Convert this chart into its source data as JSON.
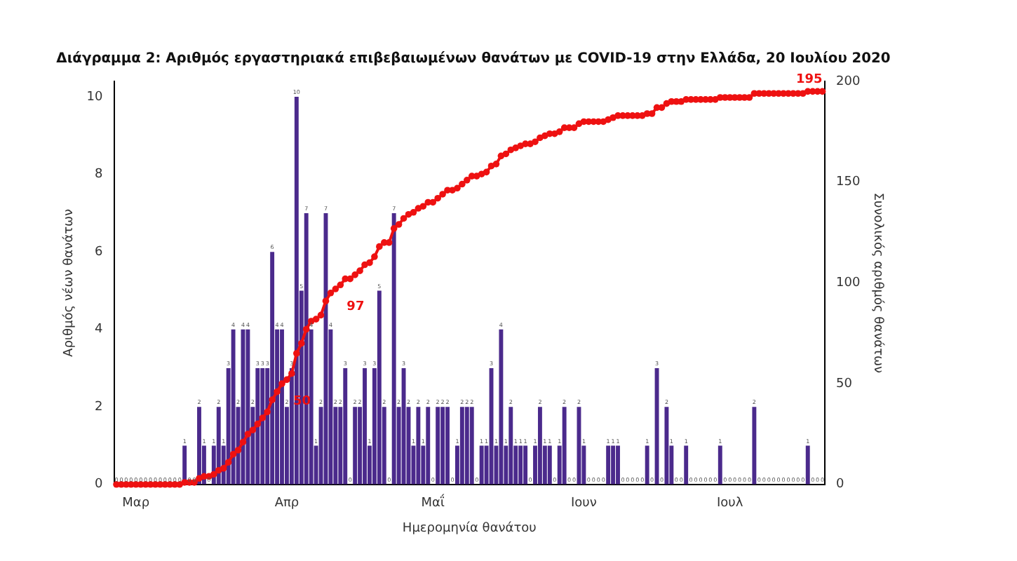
{
  "chart_data": {
    "type": "bar",
    "title": "Διάγραμμα 2: Αριθμός εργαστηριακά επιβεβαιωμένων θανάτων με COVID-19 στην Ελλάδα, 20 Ιουλίου 2020",
    "xlabel": "Ημερομηνία θανάτου",
    "ylabel": "Αριθμός νέων θανάτων",
    "y2label": "Συνολικός αριθμός θανάτων",
    "categories": [
      null,
      null,
      null,
      null,
      "Μαρ",
      null,
      null,
      null,
      null,
      null,
      null,
      null,
      null,
      null,
      null,
      null,
      null,
      null,
      null,
      null,
      null,
      null,
      null,
      null,
      null,
      null,
      null,
      null,
      null,
      null,
      null,
      null,
      null,
      null,
      null,
      "Απρ",
      null,
      null,
      null,
      null,
      null,
      null,
      null,
      null,
      null,
      null,
      null,
      null,
      null,
      null,
      null,
      null,
      null,
      null,
      null,
      null,
      null,
      null,
      null,
      null,
      null,
      null,
      null,
      null,
      null,
      "Μαΐ",
      null,
      null,
      null,
      null,
      null,
      null,
      null,
      null,
      null,
      null,
      null,
      null,
      null,
      null,
      null,
      null,
      null,
      null,
      null,
      null,
      null,
      null,
      null,
      null,
      null,
      null,
      null,
      null,
      null,
      null,
      "Ιουν",
      null,
      null,
      null,
      null,
      null,
      null,
      null,
      null,
      null,
      null,
      null,
      null,
      null,
      null,
      null,
      null,
      null,
      null,
      null,
      null,
      null,
      null,
      null,
      null,
      null,
      null,
      null,
      null,
      null,
      "Ιουλ",
      null,
      null,
      null,
      null,
      null,
      null,
      null,
      null,
      null,
      null,
      null,
      null,
      null,
      null,
      null,
      null,
      null,
      null,
      null
    ],
    "series": [
      {
        "color": "#4b2a8c",
        "values": [
          0,
          0,
          0,
          0,
          0,
          0,
          0,
          0,
          0,
          0,
          0,
          0,
          0,
          0,
          1,
          0,
          0,
          2,
          1,
          0,
          1,
          2,
          1,
          3,
          4,
          2,
          4,
          4,
          2,
          3,
          3,
          3,
          6,
          4,
          4,
          2,
          3,
          10,
          5,
          7,
          4,
          1,
          2,
          7,
          4,
          2,
          2,
          3,
          0,
          2,
          2,
          3,
          1,
          3,
          5,
          2,
          0,
          7,
          2,
          3,
          2,
          1,
          2,
          1,
          2,
          0,
          2,
          2,
          2,
          0,
          1,
          2,
          2,
          2,
          0,
          1,
          1,
          3,
          1,
          4,
          1,
          2,
          1,
          1,
          1,
          0,
          1,
          2,
          1,
          1,
          0,
          1,
          2,
          0,
          0,
          2,
          1,
          0,
          0,
          0,
          0,
          1,
          1,
          1,
          0,
          0,
          0,
          0,
          0,
          1,
          0,
          3,
          0,
          2,
          1,
          0,
          0,
          1,
          0,
          0,
          0,
          0,
          0,
          0,
          1,
          0,
          0,
          0,
          0,
          0,
          0,
          2,
          0,
          0,
          0,
          0,
          0,
          0,
          0,
          0,
          0,
          0,
          1,
          0,
          0,
          0
        ]
      },
      {
        "type": "line",
        "axis": "y2",
        "color": "#ee1111",
        "values": [
          0,
          0,
          0,
          0,
          0,
          0,
          0,
          0,
          0,
          0,
          0,
          0,
          0,
          0,
          1,
          1,
          1,
          3,
          4,
          4,
          5,
          7,
          8,
          11,
          15,
          17,
          21,
          25,
          27,
          30,
          33,
          36,
          42,
          46,
          50,
          52,
          55,
          65,
          70,
          77,
          81,
          82,
          84,
          91,
          95,
          97,
          99,
          102,
          102,
          104,
          106,
          109,
          110,
          113,
          118,
          120,
          120,
          127,
          129,
          132,
          134,
          135,
          137,
          138,
          140,
          140,
          142,
          144,
          146,
          146,
          147,
          149,
          151,
          153,
          153,
          154,
          155,
          158,
          159,
          163,
          164,
          166,
          167,
          168,
          169,
          169,
          170,
          172,
          173,
          174,
          174,
          175,
          177,
          177,
          177,
          179,
          180,
          180,
          180,
          180,
          180,
          181,
          182,
          183,
          183,
          183,
          183,
          183,
          183,
          184,
          184,
          187,
          187,
          189,
          190,
          190,
          190,
          191,
          191,
          191,
          191,
          191,
          191,
          191,
          192,
          192,
          192,
          192,
          192,
          192,
          192,
          194,
          194,
          194,
          194,
          194,
          194,
          194,
          194,
          194,
          194,
          194,
          195,
          195,
          195,
          195
        ],
        "value_labels": [
          null,
          null,
          null,
          null,
          null,
          null,
          null,
          null,
          null,
          null,
          null,
          null,
          null,
          null,
          null,
          null,
          null,
          null,
          null,
          null,
          null,
          null,
          null,
          null,
          null,
          null,
          null,
          null,
          null,
          null,
          null,
          null,
          null,
          null,
          "50",
          null,
          null,
          null,
          null,
          null,
          null,
          null,
          null,
          null,
          null,
          "97",
          null,
          null,
          null,
          null,
          null,
          null,
          null,
          null,
          null,
          null,
          null,
          null,
          null,
          null,
          null,
          null,
          null,
          null,
          null,
          null,
          null,
          null,
          null,
          null,
          null,
          null,
          null,
          null,
          null,
          null,
          null,
          null,
          null,
          null,
          null,
          null,
          null,
          null,
          null,
          null,
          null,
          null,
          null,
          null,
          null,
          null,
          null,
          null,
          null,
          null,
          null,
          null,
          null,
          null,
          null,
          null,
          null,
          null,
          null,
          null,
          null,
          null,
          null,
          null,
          null,
          null,
          null,
          null,
          null,
          null,
          null,
          null,
          null,
          null,
          null,
          null,
          null,
          null,
          null,
          null,
          null,
          null,
          null,
          null,
          null,
          null,
          null,
          null,
          null,
          null,
          null,
          null,
          null,
          null,
          null,
          null,
          null,
          null,
          null,
          "195"
        ]
      }
    ],
    "marker": "circle",
    "data_labels": true,
    "ylim": [
      0,
      10.4
    ],
    "yticks": [
      0,
      2,
      4,
      6,
      8,
      10
    ],
    "y2lim": [
      0,
      200
    ],
    "y2ticks": [
      0,
      50,
      100,
      150,
      200
    ],
    "grid": false,
    "legend": false
  }
}
